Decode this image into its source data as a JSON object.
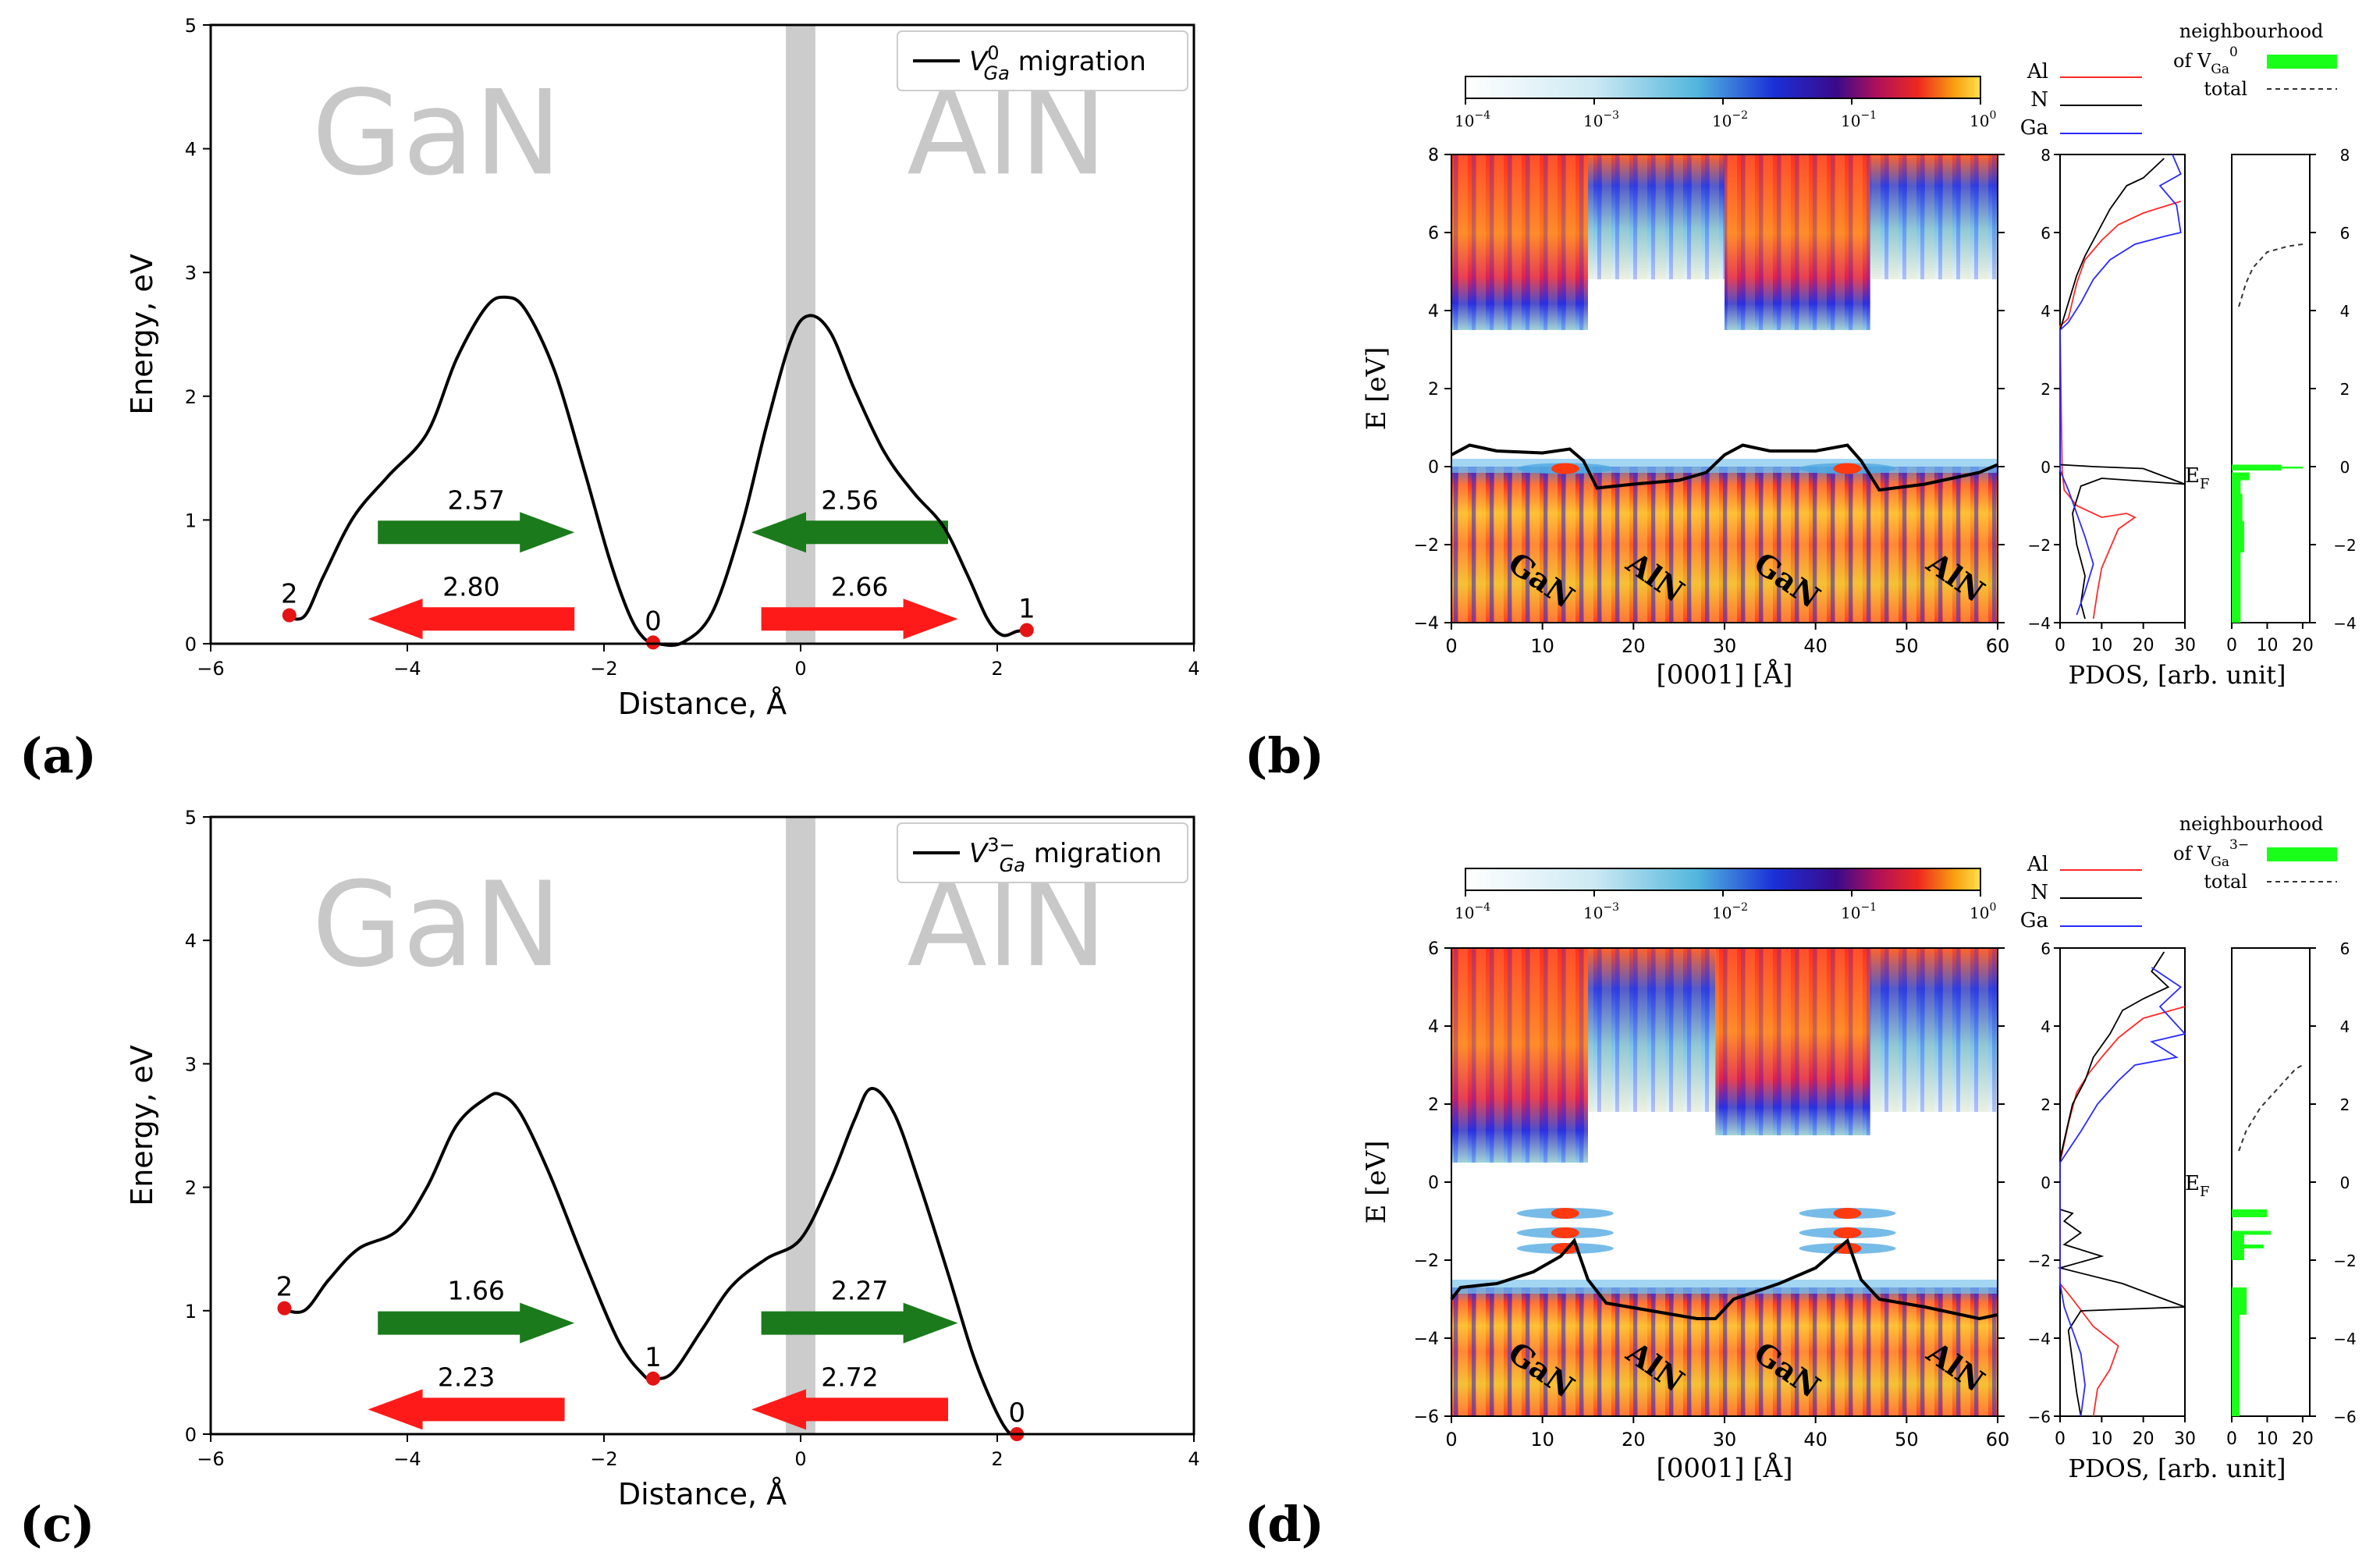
{
  "colors": {
    "green": "#1b7a1b",
    "red": "#ff1a1a",
    "band": "#cccccc",
    "material": "#c8c8c8",
    "pdos_al": "#ff2a2a",
    "pdos_n": "#000000",
    "pdos_ga": "#2a2aff",
    "pdos_fill": "#19ff19"
  },
  "panel_labels": {
    "a": "(a)",
    "b": "(b)",
    "c": "(c)",
    "d": "(d)"
  },
  "chart_data": [
    {
      "id": "a",
      "type": "line",
      "xlabel": "Distance, Å",
      "ylabel": "Energy, eV",
      "xlim": [
        -6,
        4
      ],
      "ylim": [
        0,
        5
      ],
      "xticks": [
        "−6",
        "−4",
        "−2",
        "0",
        "2",
        "4"
      ],
      "yticks": [
        "0",
        "1",
        "2",
        "3",
        "4",
        "5"
      ],
      "legend": {
        "label": "V",
        "sup": "0",
        "sub": "Ga",
        "suffix": " migration"
      },
      "materials": [
        "GaN",
        "AlN"
      ],
      "interface_x": 0,
      "curve": [
        [
          -5.25,
          0.23
        ],
        [
          -5.05,
          0.22
        ],
        [
          -4.85,
          0.55
        ],
        [
          -4.55,
          1.02
        ],
        [
          -4.2,
          1.35
        ],
        [
          -3.8,
          1.7
        ],
        [
          -3.5,
          2.3
        ],
        [
          -3.2,
          2.72
        ],
        [
          -3.0,
          2.8
        ],
        [
          -2.8,
          2.7
        ],
        [
          -2.5,
          2.2
        ],
        [
          -2.2,
          1.4
        ],
        [
          -1.95,
          0.7
        ],
        [
          -1.75,
          0.25
        ],
        [
          -1.6,
          0.05
        ],
        [
          -1.45,
          0.0
        ],
        [
          -1.2,
          0.01
        ],
        [
          -0.9,
          0.25
        ],
        [
          -0.6,
          0.95
        ],
        [
          -0.35,
          1.75
        ],
        [
          -0.1,
          2.45
        ],
        [
          0.08,
          2.65
        ],
        [
          0.3,
          2.52
        ],
        [
          0.55,
          2.05
        ],
        [
          0.85,
          1.55
        ],
        [
          1.15,
          1.22
        ],
        [
          1.45,
          0.95
        ],
        [
          1.7,
          0.55
        ],
        [
          1.9,
          0.2
        ],
        [
          2.05,
          0.07
        ],
        [
          2.2,
          0.1
        ],
        [
          2.3,
          0.11
        ]
      ],
      "points": [
        {
          "label": "2",
          "x": -5.2,
          "y": 0.23
        },
        {
          "label": "0",
          "x": -1.5,
          "y": 0.01
        },
        {
          "label": "1",
          "x": 2.3,
          "y": 0.11
        }
      ],
      "arrows": [
        {
          "value": "2.57",
          "color": "green",
          "dir": "right",
          "x0": -4.3,
          "x1": -2.3,
          "y": 0.9
        },
        {
          "value": "2.80",
          "color": "red",
          "dir": "left",
          "x0": -2.3,
          "x1": -4.4,
          "y": 0.2
        },
        {
          "value": "2.56",
          "color": "green",
          "dir": "left",
          "x0": 1.5,
          "x1": -0.5,
          "y": 0.9
        },
        {
          "value": "2.66",
          "color": "red",
          "dir": "right",
          "x0": -0.4,
          "x1": 1.6,
          "y": 0.2
        }
      ]
    },
    {
      "id": "c",
      "type": "line",
      "xlabel": "Distance, Å",
      "ylabel": "Energy, eV",
      "xlim": [
        -6,
        4
      ],
      "ylim": [
        0,
        5
      ],
      "xticks": [
        "−6",
        "−4",
        "−2",
        "0",
        "2",
        "4"
      ],
      "yticks": [
        "0",
        "1",
        "2",
        "3",
        "4",
        "5"
      ],
      "legend": {
        "label": "V",
        "sup": "3−",
        "sub": "Ga",
        "suffix": " migration"
      },
      "materials": [
        "GaN",
        "AlN"
      ],
      "interface_x": 0,
      "curve": [
        [
          -5.3,
          1.02
        ],
        [
          -5.05,
          1.0
        ],
        [
          -4.8,
          1.25
        ],
        [
          -4.5,
          1.5
        ],
        [
          -4.1,
          1.65
        ],
        [
          -3.8,
          2.0
        ],
        [
          -3.5,
          2.5
        ],
        [
          -3.2,
          2.72
        ],
        [
          -3.05,
          2.75
        ],
        [
          -2.85,
          2.6
        ],
        [
          -2.55,
          2.1
        ],
        [
          -2.2,
          1.4
        ],
        [
          -1.85,
          0.75
        ],
        [
          -1.6,
          0.48
        ],
        [
          -1.5,
          0.45
        ],
        [
          -1.3,
          0.5
        ],
        [
          -1.0,
          0.85
        ],
        [
          -0.7,
          1.2
        ],
        [
          -0.35,
          1.42
        ],
        [
          0.0,
          1.58
        ],
        [
          0.3,
          2.05
        ],
        [
          0.55,
          2.55
        ],
        [
          0.72,
          2.8
        ],
        [
          0.95,
          2.6
        ],
        [
          1.2,
          2.05
        ],
        [
          1.5,
          1.3
        ],
        [
          1.75,
          0.65
        ],
        [
          1.95,
          0.25
        ],
        [
          2.1,
          0.03
        ],
        [
          2.2,
          0.0
        ]
      ],
      "points": [
        {
          "label": "2",
          "x": -5.25,
          "y": 1.02
        },
        {
          "label": "1",
          "x": -1.5,
          "y": 0.45
        },
        {
          "label": "0",
          "x": 2.2,
          "y": 0.0
        }
      ],
      "arrows": [
        {
          "value": "1.66",
          "color": "green",
          "dir": "right",
          "x0": -4.3,
          "x1": -2.3,
          "y": 0.9
        },
        {
          "value": "2.23",
          "color": "red",
          "dir": "left",
          "x0": -2.4,
          "x1": -4.4,
          "y": 0.2
        },
        {
          "value": "2.27",
          "color": "green",
          "dir": "right",
          "x0": -0.4,
          "x1": 1.6,
          "y": 0.9
        },
        {
          "value": "2.72",
          "color": "red",
          "dir": "left",
          "x0": 1.5,
          "x1": -0.5,
          "y": 0.2
        }
      ]
    },
    {
      "id": "b",
      "type": "heatmap",
      "xlabel": "[0001] [Å]",
      "ylabel": "E [eV]",
      "xlim": [
        0,
        60
      ],
      "ylim": [
        -4,
        8
      ],
      "xticks": [
        "0",
        "10",
        "20",
        "30",
        "40",
        "50",
        "60"
      ],
      "yticks": [
        "−4",
        "−2",
        "0",
        "2",
        "4",
        "6",
        "8"
      ],
      "colorbar_ticks": [
        "10",
        "10",
        "10",
        "10",
        "10"
      ],
      "colorbar_exponents": [
        "−4",
        "−3",
        "−2",
        "−1",
        "0"
      ],
      "region_labels": [
        "GaN",
        "AlN",
        "GaN",
        "AlN"
      ],
      "cb_min": 3.5,
      "vb_max": 0,
      "pdos_xlabel": "PDOS, [arb. unit]",
      "pdos_xticks": [
        "0",
        "10",
        "20",
        "30"
      ],
      "pdos2_xticks": [
        "0",
        "10",
        "20"
      ],
      "pdos_yticks": [
        "−4",
        "−2",
        "0",
        "2",
        "4",
        "6",
        "8"
      ],
      "pdos_legend": [
        "Al",
        "N",
        "Ga"
      ],
      "neigh_legend": {
        "title": "neighbourhood",
        "of": "of V",
        "sub": "Ga",
        "sup": "0",
        "total": "total"
      },
      "ef_label": "E",
      "ef_sub": "F"
    },
    {
      "id": "d",
      "type": "heatmap",
      "xlabel": "[0001] [Å]",
      "ylabel": "E [eV]",
      "xlim": [
        0,
        60
      ],
      "ylim": [
        -6,
        6
      ],
      "xticks": [
        "0",
        "10",
        "20",
        "30",
        "40",
        "50",
        "60"
      ],
      "yticks": [
        "−6",
        "−4",
        "−2",
        "0",
        "2",
        "4",
        "6"
      ],
      "colorbar_ticks": [
        "10",
        "10",
        "10",
        "10",
        "10"
      ],
      "colorbar_exponents": [
        "−4",
        "−3",
        "−2",
        "−1",
        "0"
      ],
      "region_labels": [
        "GaN",
        "AlN",
        "GaN",
        "AlN"
      ],
      "cb_min": 0.5,
      "vb_max": -2.7,
      "pdos_xlabel": "PDOS, [arb. unit]",
      "pdos_xticks": [
        "0",
        "10",
        "20",
        "30"
      ],
      "pdos2_xticks": [
        "0",
        "10",
        "20"
      ],
      "pdos_yticks": [
        "−6",
        "−4",
        "−2",
        "0",
        "2",
        "4",
        "6"
      ],
      "pdos_legend": [
        "Al",
        "N",
        "Ga"
      ],
      "neigh_legend": {
        "title": "neighbourhood",
        "of": "of V",
        "sub": "Ga",
        "sup": "3−",
        "total": "total"
      },
      "ef_label": "E",
      "ef_sub": "F"
    }
  ]
}
